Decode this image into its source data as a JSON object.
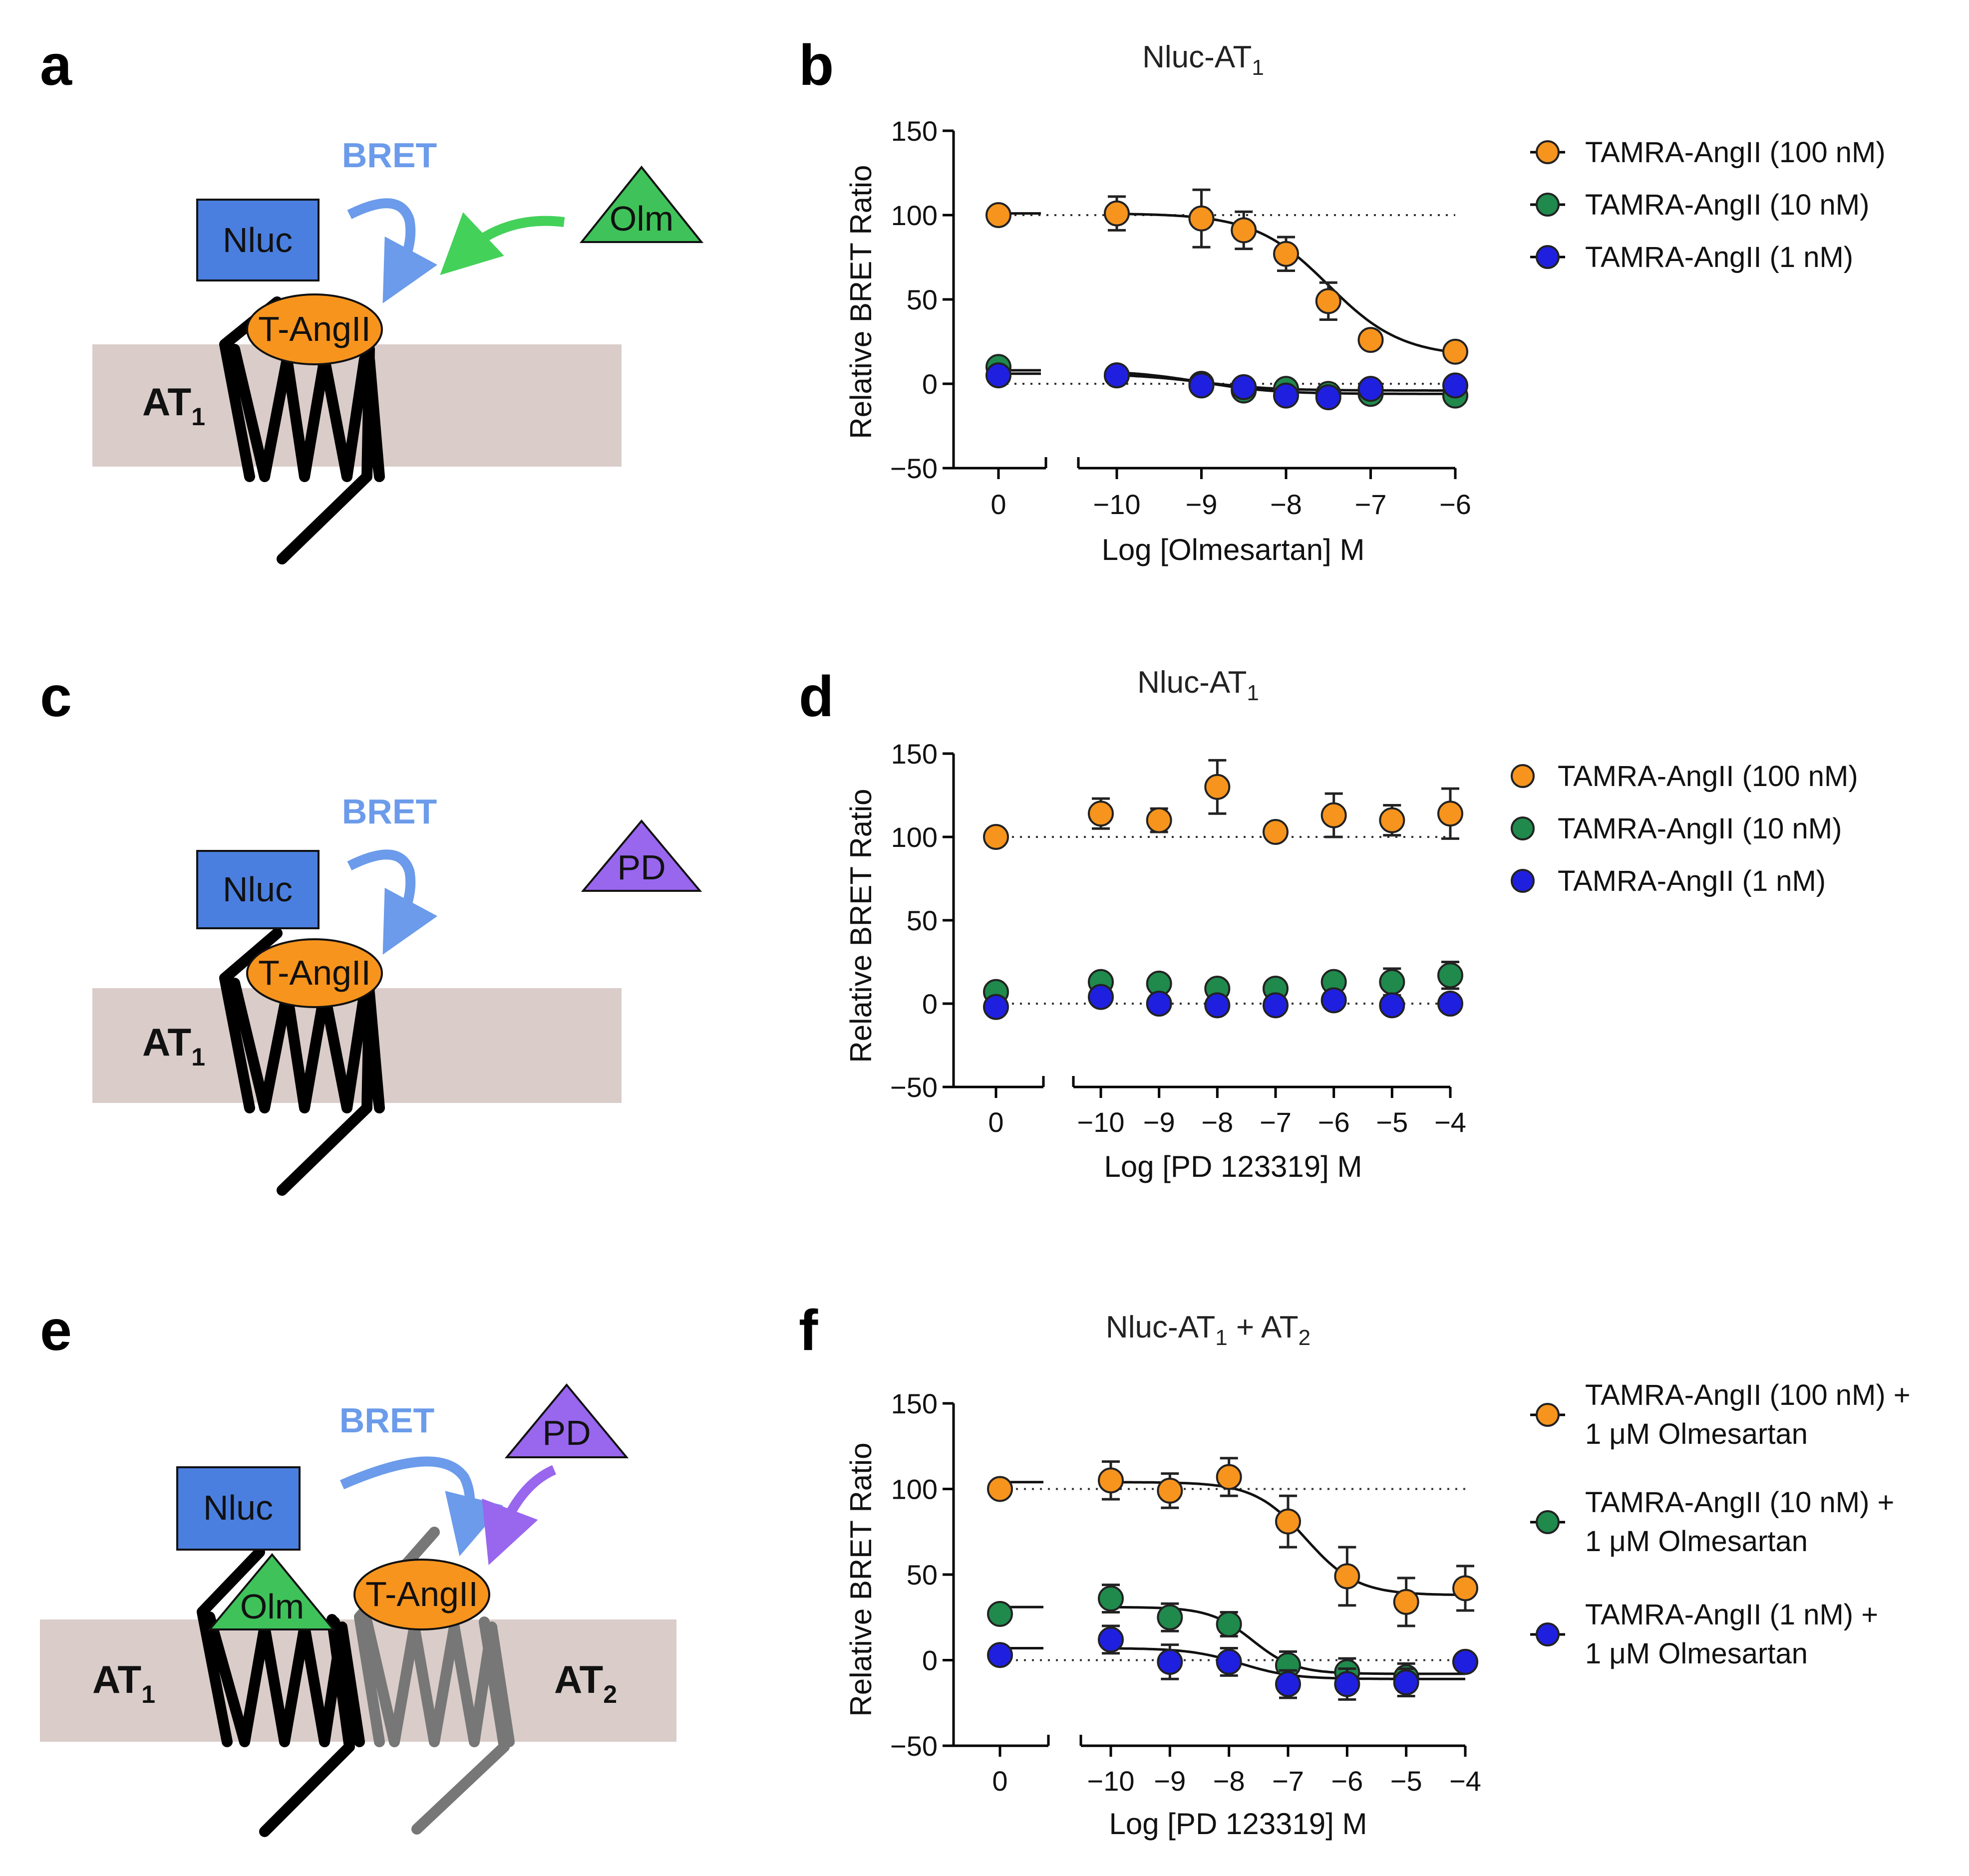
{
  "panels": {
    "a": {
      "letter": "a",
      "bret": "BRET",
      "nluc": "Nluc",
      "ligand": "T-AngII",
      "antagonist": "Olm",
      "receptor": "AT",
      "receptor_sub": "1"
    },
    "b": {
      "letter": "b",
      "title_main": "Nluc-AT",
      "title_sub": "1",
      "ylabel": "Relative BRET Ratio",
      "xlabel": "Log [Olmesartan] M",
      "yticks": [
        "150",
        "100",
        "50",
        "0",
        "−50"
      ],
      "xtick_zero": "0",
      "xticks": [
        "−10",
        "−9",
        "−8",
        "−7",
        "−6"
      ],
      "legend": [
        "TAMRA-AngII (100 nM)",
        "TAMRA-AngII (10 nM)",
        "TAMRA-AngII (1 nM)"
      ]
    },
    "c": {
      "letter": "c",
      "bret": "BRET",
      "nluc": "Nluc",
      "ligand": "T-AngII",
      "antagonist": "PD",
      "receptor": "AT",
      "receptor_sub": "1"
    },
    "d": {
      "letter": "d",
      "title_main": "Nluc-AT",
      "title_sub": "1",
      "ylabel": "Relative BRET Ratio",
      "xlabel": "Log [PD 123319] M",
      "yticks": [
        "150",
        "100",
        "50",
        "0",
        "−50"
      ],
      "xtick_zero": "0",
      "xticks": [
        "−10",
        "−9",
        "−8",
        "−7",
        "−6",
        "−5",
        "−4"
      ],
      "legend": [
        "TAMRA-AngII (100 nM)",
        "TAMRA-AngII (10 nM)",
        "TAMRA-AngII (1 nM)"
      ]
    },
    "e": {
      "letter": "e",
      "bret": "BRET",
      "nluc": "Nluc",
      "ligand": "T-AngII",
      "antagonist1": "Olm",
      "antagonist2": "PD",
      "receptor1": "AT",
      "receptor1_sub": "1",
      "receptor2": "AT",
      "receptor2_sub": "2"
    },
    "f": {
      "letter": "f",
      "title_main": "Nluc-AT",
      "title_sub1": "1",
      "title_plus": " + AT",
      "title_sub2": "2",
      "ylabel": "Relative BRET Ratio",
      "xlabel": "Log [PD 123319] M",
      "yticks": [
        "150",
        "100",
        "50",
        "0",
        "−50"
      ],
      "xtick_zero": "0",
      "xticks": [
        "−10",
        "−9",
        "−8",
        "−7",
        "−6",
        "−5",
        "−4"
      ],
      "legend": [
        {
          "line1": "TAMRA-AngII (100 nM) +",
          "line2": "1 μM Olmesartan"
        },
        {
          "line1": "TAMRA-AngII (10 nM) +",
          "line2": "1 μM Olmesartan"
        },
        {
          "line1": "TAMRA-AngII (1 nM) +",
          "line2": "1 μM Olmesartan"
        }
      ]
    }
  },
  "colors": {
    "orange": "#f7941d",
    "green": "#1f8a4c",
    "blue": "#1f1fe0",
    "nluc": "#4a7fe0",
    "olm": "#3fc25a",
    "pd": "#9966ee",
    "membrane": "#d9ccc9",
    "bret_arrow": "#6b9bea",
    "olm_arrow": "#44d15a"
  },
  "chart_data": [
    {
      "type": "scatter",
      "panel": "b",
      "title": "Nluc-AT1",
      "xlabel": "Log [Olmesartan] M",
      "ylabel": "Relative BRET Ratio",
      "ylim": [
        -50,
        150
      ],
      "xlim": [
        -10.5,
        -6
      ],
      "has_zero_break": true,
      "reference_lines": [
        100,
        0
      ],
      "series": [
        {
          "name": "TAMRA-AngII (100 nM)",
          "color": "orange",
          "zero": {
            "y": 100,
            "err": 0
          },
          "x": [
            -10,
            -9,
            -8.5,
            -8,
            -7.5,
            -7,
            -6
          ],
          "y": [
            101,
            98,
            91,
            77,
            49,
            26,
            19
          ],
          "err": [
            10,
            17,
            11,
            10,
            11,
            3,
            3
          ],
          "fit": {
            "top": 101,
            "bottom": 16,
            "logec50": -7.5,
            "hill": 1.0
          }
        },
        {
          "name": "TAMRA-AngII (10 nM)",
          "color": "green",
          "zero": {
            "y": 10,
            "err": 0
          },
          "x": [
            -10,
            -9,
            -8.5,
            -8,
            -7.5,
            -7,
            -6
          ],
          "y": [
            5,
            0,
            -4,
            -3,
            -6,
            -6,
            -7
          ],
          "err": [
            3,
            3,
            3,
            3,
            3,
            3,
            3
          ],
          "fit": {
            "top": 8,
            "bottom": -6,
            "logec50": -9.0,
            "hill": 1.0
          }
        },
        {
          "name": "TAMRA-AngII (1 nM)",
          "color": "blue",
          "zero": {
            "y": 5,
            "err": 0
          },
          "x": [
            -10,
            -9,
            -8.5,
            -8,
            -7.5,
            -7,
            -6
          ],
          "y": [
            5,
            -1,
            -2,
            -7,
            -8,
            -3,
            -1
          ],
          "err": [
            3,
            3,
            3,
            3,
            3,
            3,
            3
          ],
          "fit": {
            "top": 6,
            "bottom": -4,
            "logec50": -9.0,
            "hill": 1.0
          }
        }
      ]
    },
    {
      "type": "scatter",
      "panel": "d",
      "title": "Nluc-AT1",
      "xlabel": "Log [PD 123319] M",
      "ylabel": "Relative BRET Ratio",
      "ylim": [
        -50,
        150
      ],
      "xlim": [
        -10.5,
        -4
      ],
      "has_zero_break": true,
      "reference_lines": [
        100,
        0
      ],
      "series": [
        {
          "name": "TAMRA-AngII (100 nM)",
          "color": "orange",
          "zero": {
            "y": 100,
            "err": 0
          },
          "x": [
            -10,
            -9,
            -8,
            -7,
            -6,
            -5,
            -4
          ],
          "y": [
            114,
            110,
            130,
            103,
            113,
            110,
            114
          ],
          "err": [
            9,
            7,
            16,
            3,
            13,
            9,
            15
          ]
        },
        {
          "name": "TAMRA-AngII (10 nM)",
          "color": "green",
          "zero": {
            "y": 7,
            "err": 0
          },
          "x": [
            -10,
            -9,
            -8,
            -7,
            -6,
            -5,
            -4
          ],
          "y": [
            13,
            12,
            9,
            9,
            13,
            13,
            17
          ],
          "err": [
            3,
            3,
            3,
            3,
            3,
            8,
            8
          ]
        },
        {
          "name": "TAMRA-AngII (1 nM)",
          "color": "blue",
          "zero": {
            "y": -2,
            "err": 0
          },
          "x": [
            -10,
            -9,
            -8,
            -7,
            -6,
            -5,
            -4
          ],
          "y": [
            4,
            0,
            -1,
            -1,
            2,
            -1,
            0
          ],
          "err": [
            3,
            3,
            3,
            3,
            3,
            3,
            3
          ]
        }
      ]
    },
    {
      "type": "scatter",
      "panel": "f",
      "title": "Nluc-AT1 + AT2",
      "xlabel": "Log [PD 123319] M",
      "ylabel": "Relative BRET Ratio",
      "ylim": [
        -50,
        150
      ],
      "xlim": [
        -10.5,
        -4
      ],
      "has_zero_break": true,
      "reference_lines": [
        100,
        0
      ],
      "series": [
        {
          "name": "TAMRA-AngII (100 nM) + 1 μM Olmesartan",
          "color": "orange",
          "zero": {
            "y": 100,
            "err": 0
          },
          "x": [
            -10,
            -9,
            -8,
            -7,
            -6,
            -5,
            -4
          ],
          "y": [
            105,
            99,
            107,
            81,
            49,
            34,
            42
          ],
          "err": [
            11,
            10,
            11,
            15,
            17,
            14,
            13
          ],
          "fit": {
            "top": 104,
            "bottom": 38,
            "logec50": -6.7,
            "hill": 1.0
          }
        },
        {
          "name": "TAMRA-AngII (10 nM) + 1 μM Olmesartan",
          "color": "green",
          "zero": {
            "y": 27,
            "err": 0
          },
          "x": [
            -10,
            -9,
            -8,
            -7,
            -6,
            -5,
            -4
          ],
          "y": [
            36,
            25,
            21,
            -3,
            -7,
            -10,
            -1
          ],
          "err": [
            8,
            8,
            7,
            8,
            8,
            8,
            4
          ],
          "fit": {
            "top": 31,
            "bottom": -8,
            "logec50": -7.6,
            "hill": 1.2
          }
        },
        {
          "name": "TAMRA-AngII (1 nM) + 1 μM Olmesartan",
          "color": "blue",
          "zero": {
            "y": 3,
            "err": 0
          },
          "x": [
            -10,
            -9,
            -8,
            -7,
            -6,
            -5,
            -4
          ],
          "y": [
            12,
            -1,
            -1,
            -14,
            -14,
            -13,
            -1
          ],
          "err": [
            8,
            10,
            8,
            8,
            9,
            8,
            3
          ],
          "fit": {
            "top": 7,
            "bottom": -11,
            "logec50": -7.8,
            "hill": 1.0
          }
        }
      ]
    }
  ]
}
